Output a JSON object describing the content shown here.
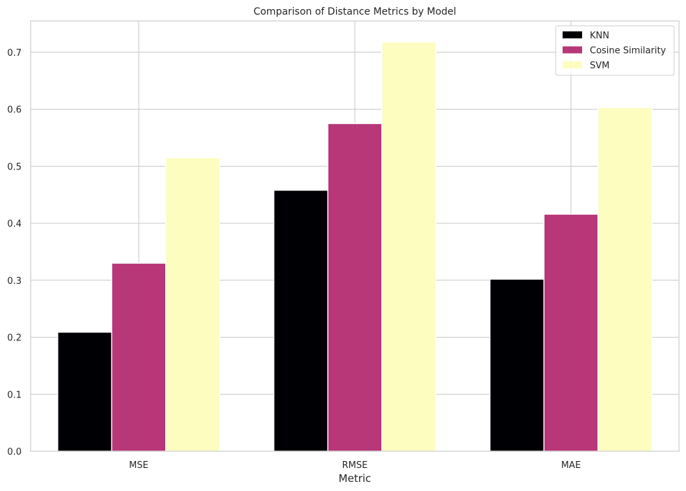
{
  "chart_data": {
    "type": "bar",
    "title": "Comparison of Distance Metrics by Model",
    "xlabel": "Metric",
    "ylabel": "",
    "categories": [
      "MSE",
      "RMSE",
      "MAE"
    ],
    "series": [
      {
        "name": "KNN",
        "color": "#000004",
        "values": [
          0.209,
          0.458,
          0.302
        ]
      },
      {
        "name": "Cosine Similarity",
        "color": "#b73779",
        "values": [
          0.33,
          0.575,
          0.416
        ]
      },
      {
        "name": "SVM",
        "color": "#fcfdbf",
        "values": [
          0.515,
          0.718,
          0.603
        ]
      }
    ],
    "ylim": [
      0,
      0.755
    ],
    "yticks": [
      "0.0",
      "0.1",
      "0.2",
      "0.3",
      "0.4",
      "0.5",
      "0.6",
      "0.7"
    ],
    "grid": true,
    "legend_position": "top-right"
  }
}
